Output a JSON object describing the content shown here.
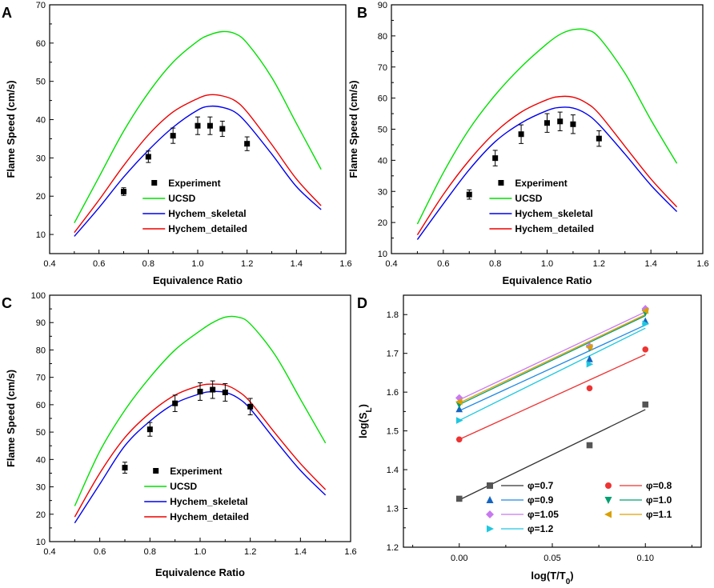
{
  "chart_data": [
    {
      "id": "A",
      "panel_label": "A",
      "type": "line",
      "xlabel": "Equivalence Ratio",
      "ylabel": "Flame Speed (cm/s)",
      "xlim": [
        0.4,
        1.6
      ],
      "ylim": [
        5,
        70
      ],
      "xticks": [
        "0.4",
        "0.6",
        "0.8",
        "1.0",
        "1.2",
        "1.4",
        "1.6"
      ],
      "yticks": [
        "10",
        "20",
        "30",
        "40",
        "50",
        "60",
        "70"
      ],
      "legend_loc": "lower-center",
      "experiment": {
        "name": "Experiment",
        "x": [
          0.7,
          0.8,
          0.9,
          1.0,
          1.05,
          1.1,
          1.2
        ],
        "y": [
          21.2,
          30.3,
          35.8,
          38.4,
          38.4,
          37.6,
          33.7
        ],
        "err": [
          1.0,
          1.5,
          2.0,
          2.3,
          2.3,
          2.0,
          1.8
        ]
      },
      "series": [
        {
          "name": "UCSD",
          "color": "#00e000",
          "x": [
            0.5,
            0.6,
            0.7,
            0.8,
            0.9,
            1.0,
            1.05,
            1.1,
            1.15,
            1.2,
            1.3,
            1.4,
            1.5
          ],
          "y": [
            13,
            25,
            37,
            47,
            55,
            60.5,
            62.2,
            63,
            62.5,
            60,
            51,
            39,
            27
          ]
        },
        {
          "name": "Hychem_skeletal",
          "color": "#0000ee",
          "x": [
            0.5,
            0.6,
            0.7,
            0.8,
            0.9,
            1.0,
            1.05,
            1.1,
            1.15,
            1.2,
            1.3,
            1.4,
            1.5
          ],
          "y": [
            9.5,
            17,
            25,
            32,
            38,
            42.5,
            43.5,
            43.2,
            42,
            39,
            31,
            22.5,
            16.5
          ]
        },
        {
          "name": "Hychem_detailed",
          "color": "#ee0000",
          "x": [
            0.5,
            0.6,
            0.7,
            0.8,
            0.9,
            1.0,
            1.05,
            1.1,
            1.15,
            1.2,
            1.3,
            1.4,
            1.5
          ],
          "y": [
            10.5,
            19,
            28,
            36,
            42,
            45.5,
            46.5,
            46.2,
            45,
            42,
            33.5,
            24.5,
            17.5
          ]
        }
      ]
    },
    {
      "id": "B",
      "panel_label": "B",
      "type": "line",
      "xlabel": "Equivalence Ratio",
      "ylabel": "Flame Speed (cm/s)",
      "xlim": [
        0.4,
        1.6
      ],
      "ylim": [
        10,
        90
      ],
      "xticks": [
        "0.4",
        "0.6",
        "0.8",
        "1.0",
        "1.2",
        "1.4",
        "1.6"
      ],
      "yticks": [
        "10",
        "20",
        "30",
        "40",
        "50",
        "60",
        "70",
        "80",
        "90"
      ],
      "legend_loc": "lower-center",
      "experiment": {
        "name": "Experiment",
        "x": [
          0.7,
          0.8,
          0.9,
          1.0,
          1.05,
          1.1,
          1.2
        ],
        "y": [
          29.0,
          40.7,
          48.4,
          52.0,
          52.5,
          51.6,
          47.0
        ],
        "err": [
          1.5,
          2.5,
          3.0,
          3.0,
          3.0,
          3.0,
          2.5
        ]
      },
      "series": [
        {
          "name": "UCSD",
          "color": "#00e000",
          "x": [
            0.5,
            0.6,
            0.7,
            0.8,
            0.9,
            1.0,
            1.05,
            1.1,
            1.15,
            1.2,
            1.3,
            1.4,
            1.5
          ],
          "y": [
            19.5,
            36,
            50,
            61,
            70,
            77.5,
            80.5,
            82,
            82,
            79.5,
            68,
            53,
            39
          ]
        },
        {
          "name": "Hychem_skeletal",
          "color": "#0000ee",
          "x": [
            0.5,
            0.6,
            0.7,
            0.8,
            0.9,
            1.0,
            1.05,
            1.1,
            1.15,
            1.2,
            1.3,
            1.4,
            1.5
          ],
          "y": [
            14.5,
            26,
            37,
            46,
            52,
            56,
            57,
            56.8,
            55,
            51.5,
            42,
            32,
            23.5
          ]
        },
        {
          "name": "Hychem_detailed",
          "color": "#ee0000",
          "x": [
            0.5,
            0.6,
            0.7,
            0.8,
            0.9,
            1.0,
            1.05,
            1.1,
            1.15,
            1.2,
            1.3,
            1.4,
            1.5
          ],
          "y": [
            16,
            29,
            40,
            49,
            55.5,
            59.5,
            60.5,
            60.3,
            58.5,
            55,
            44.5,
            34,
            25
          ]
        }
      ]
    },
    {
      "id": "C",
      "panel_label": "C",
      "type": "line",
      "xlabel": "Equivalence Ratio",
      "ylabel": "Flame Speed (cm/s)",
      "xlim": [
        0.4,
        1.6
      ],
      "ylim": [
        10,
        100
      ],
      "xticks": [
        "0.4",
        "0.6",
        "0.8",
        "1.0",
        "1.2",
        "1.4",
        "1.6"
      ],
      "yticks": [
        "10",
        "20",
        "30",
        "40",
        "50",
        "60",
        "70",
        "80",
        "90",
        "100"
      ],
      "legend_loc": "lower-center",
      "experiment": {
        "name": "Experiment",
        "x": [
          0.7,
          0.8,
          0.9,
          1.0,
          1.05,
          1.1,
          1.2
        ],
        "y": [
          37.0,
          51.0,
          60.5,
          64.8,
          65.5,
          64.5,
          59.3
        ],
        "err": [
          2.0,
          2.5,
          3.0,
          3.2,
          3.2,
          3.2,
          3.0
        ]
      },
      "series": [
        {
          "name": "UCSD",
          "color": "#00e000",
          "x": [
            0.5,
            0.6,
            0.7,
            0.8,
            0.9,
            1.0,
            1.05,
            1.1,
            1.15,
            1.2,
            1.3,
            1.4,
            1.5
          ],
          "y": [
            23,
            43,
            58,
            70,
            80,
            87,
            90,
            92,
            92,
            89.5,
            78,
            62,
            46
          ]
        },
        {
          "name": "Hychem_skeletal",
          "color": "#0000ee",
          "x": [
            0.5,
            0.6,
            0.7,
            0.8,
            0.9,
            1.0,
            1.05,
            1.1,
            1.15,
            1.2,
            1.3,
            1.4,
            1.5
          ],
          "y": [
            16.8,
            31,
            45,
            54,
            60.5,
            64,
            64.8,
            64.5,
            62.5,
            58.5,
            47,
            36,
            27
          ]
        },
        {
          "name": "Hychem_detailed",
          "color": "#ee0000",
          "x": [
            0.5,
            0.6,
            0.7,
            0.8,
            0.9,
            1.0,
            1.05,
            1.1,
            1.15,
            1.2,
            1.3,
            1.4,
            1.5
          ],
          "y": [
            19,
            35,
            48,
            57,
            63.5,
            67,
            67.5,
            67.2,
            65,
            61,
            49.5,
            38.5,
            29
          ]
        }
      ]
    },
    {
      "id": "D",
      "panel_label": "D",
      "type": "scatter",
      "xlabel_main": "log(T/T",
      "xlabel_sub": "0",
      "xlabel_end": ")",
      "ylabel_main": "log(S",
      "ylabel_sub": "L",
      "ylabel_end": ")",
      "xlim": [
        -0.03,
        0.13
      ],
      "ylim": [
        1.2,
        1.85
      ],
      "xticks": [
        "0.00",
        "0.05",
        "0.10"
      ],
      "ytick_values": [
        1.2,
        1.3,
        1.4,
        1.5,
        1.6,
        1.7,
        1.8
      ],
      "yticks": [
        "1.2",
        "1.3",
        "1.4",
        "1.5",
        "1.6",
        "1.7",
        "1.8"
      ],
      "legend_loc": "lower-right",
      "series": [
        {
          "name": "φ=0.7",
          "marker": "square",
          "color": "#555555",
          "line_color": "#333333",
          "x": [
            0.0,
            0.07,
            0.1
          ],
          "y": [
            1.325,
            1.463,
            1.568
          ],
          "fit": [
            1.322,
            1.555
          ]
        },
        {
          "name": "φ=0.8",
          "marker": "circle",
          "color": "#ee3333",
          "line_color": "#ee3333",
          "x": [
            0.0,
            0.07,
            0.1
          ],
          "y": [
            1.478,
            1.61,
            1.71
          ],
          "fit": [
            1.478,
            1.697
          ]
        },
        {
          "name": "φ=0.9",
          "marker": "triangle-up",
          "color": "#1565c0",
          "line_color": "#1e88e5",
          "x": [
            0.0,
            0.07,
            0.1
          ],
          "y": [
            1.556,
            1.685,
            1.783
          ],
          "fit": [
            1.552,
            1.773
          ]
        },
        {
          "name": "φ=1.0",
          "marker": "triangle-down",
          "color": "#00a070",
          "line_color": "#00a070",
          "x": [
            0.0,
            0.07,
            0.1
          ],
          "y": [
            1.568,
            1.714,
            1.805
          ],
          "fit": [
            1.568,
            1.797
          ]
        },
        {
          "name": "φ=1.05",
          "marker": "diamond",
          "color": "#c879f0",
          "line_color": "#c879f0",
          "x": [
            0.0,
            0.07,
            0.1
          ],
          "y": [
            1.585,
            1.718,
            1.815
          ],
          "fit": [
            1.58,
            1.807
          ]
        },
        {
          "name": "φ=1.1",
          "marker": "triangle-left",
          "color": "#d9a000",
          "line_color": "#e0a000",
          "x": [
            0.0,
            0.07,
            0.1
          ],
          "y": [
            1.575,
            1.716,
            1.81
          ],
          "fit": [
            1.572,
            1.8
          ]
        },
        {
          "name": "φ=1.2",
          "marker": "triangle-right",
          "color": "#1ec8e0",
          "line_color": "#1ec8e0",
          "x": [
            0.0,
            0.07,
            0.1
          ],
          "y": [
            1.527,
            1.672,
            1.776
          ],
          "fit": [
            1.527,
            1.765
          ]
        }
      ]
    }
  ]
}
